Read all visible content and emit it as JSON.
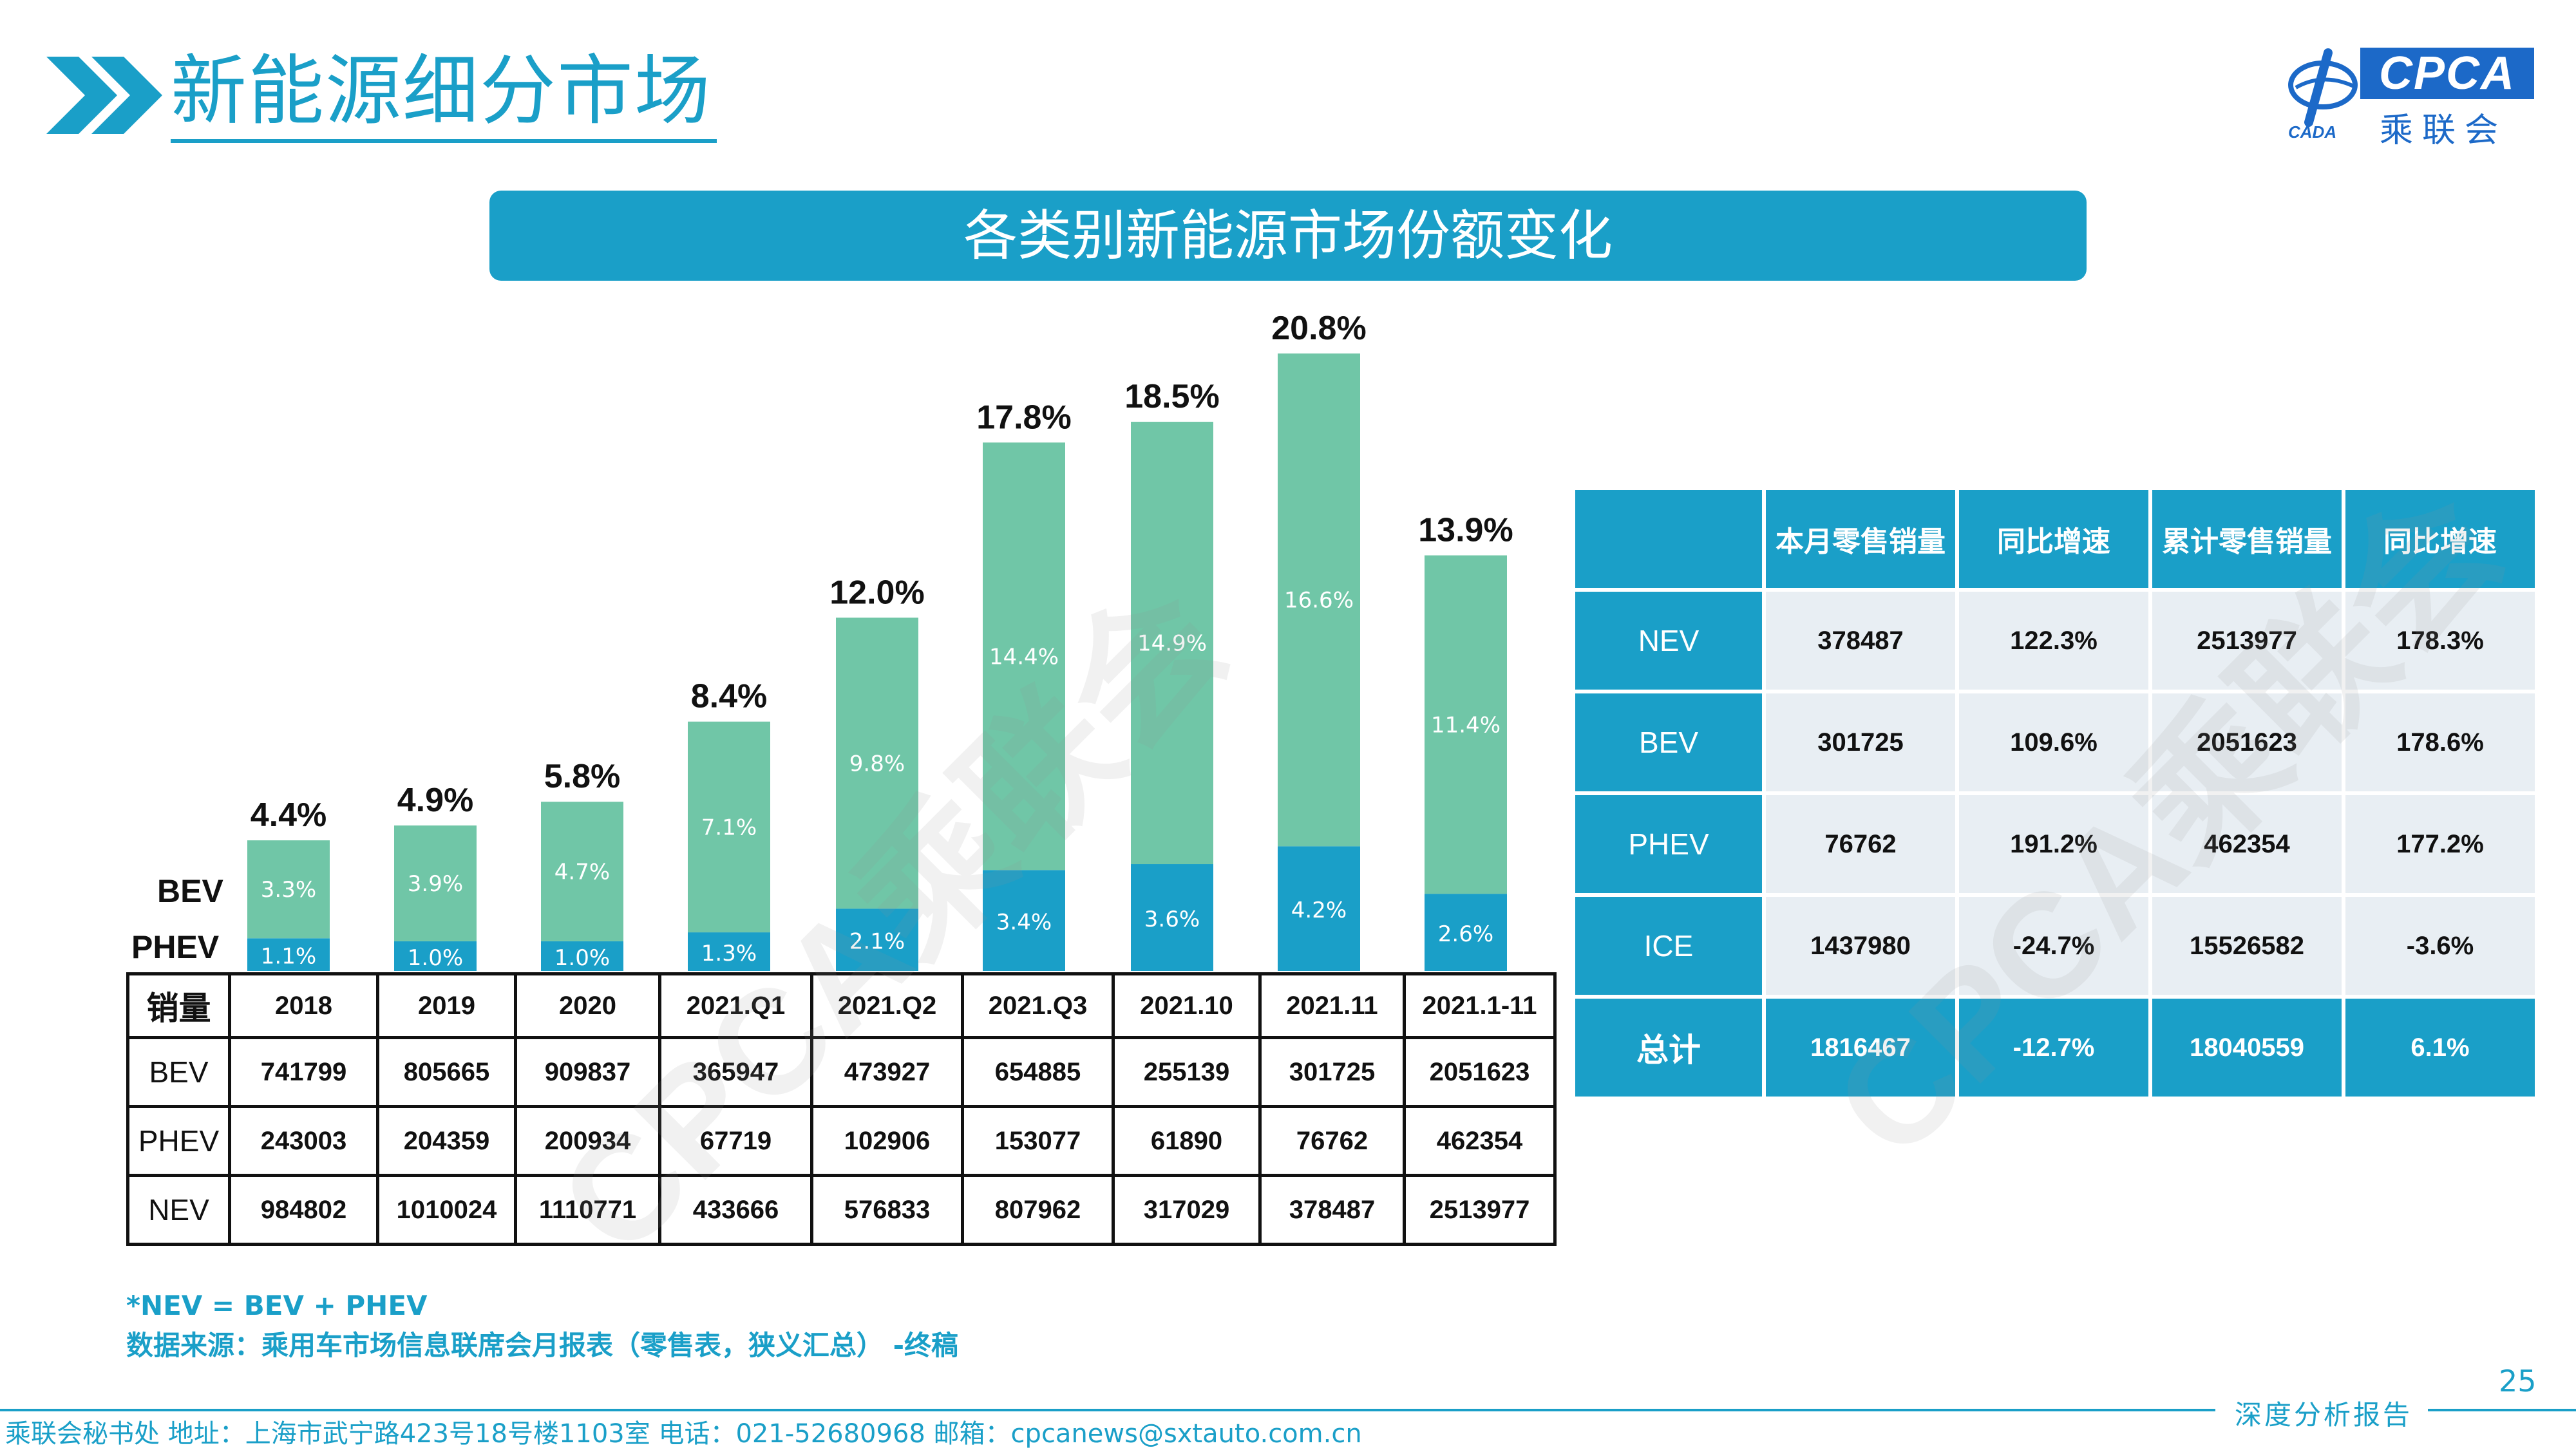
{
  "header": {
    "page_title": "新能源细分市场",
    "banner_title": "各类别新能源市场份额变化",
    "logo_text": "CPCA",
    "logo_cn": "乘联会",
    "logo_small": "CADA"
  },
  "colors": {
    "accent": "#1a9fc8",
    "bev": "#70c6a7",
    "phev": "#1a9fc8"
  },
  "chart_data": {
    "type": "bar",
    "stacked": true,
    "categories": [
      "2018",
      "2019",
      "2020",
      "2021.Q1",
      "2021.Q2",
      "2021.Q3",
      "2021.10",
      "2021.11",
      "2021.1-11"
    ],
    "series": [
      {
        "name": "PHEV",
        "values": [
          1.1,
          1.0,
          1.0,
          1.3,
          2.1,
          3.4,
          3.6,
          4.2,
          2.6
        ],
        "labels": [
          "1.1%",
          "1.0%",
          "1.0%",
          "1.3%",
          "2.1%",
          "3.4%",
          "3.6%",
          "4.2%",
          "2.6%"
        ]
      },
      {
        "name": "BEV",
        "values": [
          3.3,
          3.9,
          4.7,
          7.1,
          9.8,
          14.4,
          14.9,
          16.6,
          11.4
        ],
        "labels": [
          "3.3%",
          "3.9%",
          "4.7%",
          "7.1%",
          "9.8%",
          "14.4%",
          "14.9%",
          "16.6%",
          "11.4%"
        ]
      }
    ],
    "totals": [
      4.4,
      4.9,
      5.8,
      8.4,
      12.0,
      17.8,
      18.5,
      20.8,
      13.9
    ],
    "total_labels": [
      "4.4%",
      "4.9%",
      "5.8%",
      "8.4%",
      "12.0%",
      "17.8%",
      "18.5%",
      "20.8%",
      "13.9%"
    ],
    "ylim": [
      0,
      21
    ]
  },
  "sales_table": {
    "corner": "销量",
    "columns": [
      "2018",
      "2019",
      "2020",
      "2021.Q1",
      "2021.Q2",
      "2021.Q3",
      "2021.10",
      "2021.11",
      "2021.1-11"
    ],
    "rows": [
      {
        "label": "BEV",
        "values": [
          "741799",
          "805665",
          "909837",
          "365947",
          "473927",
          "654885",
          "255139",
          "301725",
          "2051623"
        ]
      },
      {
        "label": "PHEV",
        "values": [
          "243003",
          "204359",
          "200934",
          "67719",
          "102906",
          "153077",
          "61890",
          "76762",
          "462354"
        ]
      },
      {
        "label": "NEV",
        "values": [
          "984802",
          "1010024",
          "1110771",
          "433666",
          "576833",
          "807962",
          "317029",
          "378487",
          "2513977"
        ]
      }
    ]
  },
  "summary_table": {
    "headers": [
      "",
      "本月零售销量",
      "同比增速",
      "累计零售销量",
      "同比增速"
    ],
    "rows": [
      {
        "label": "NEV",
        "values": [
          "378487",
          "122.3%",
          "2513977",
          "178.3%"
        ]
      },
      {
        "label": "BEV",
        "values": [
          "301725",
          "109.6%",
          "2051623",
          "178.6%"
        ]
      },
      {
        "label": "PHEV",
        "values": [
          "76762",
          "191.2%",
          "462354",
          "177.2%"
        ]
      },
      {
        "label": "ICE",
        "values": [
          "1437980",
          "-24.7%",
          "15526582",
          "-3.6%"
        ]
      },
      {
        "label": "总计",
        "values": [
          "1816467",
          "-12.7%",
          "18040559",
          "6.1%"
        ]
      }
    ]
  },
  "notes": {
    "nev_formula": "*NEV = BEV + PHEV",
    "source": "数据来源：乘用车市场信息联席会月报表（零售表，狭义汇总） -终稿"
  },
  "footer": {
    "contact": "乘联会秘书处   地址：上海市武宁路423号18号楼1103室  电话：021-52680968   邮箱：cpcanews@sxtauto.com.cn",
    "report_type": "深度分析报告",
    "page_number": "25"
  },
  "watermarks": [
    "CPCA乘联会",
    "CPCA乘联会"
  ]
}
